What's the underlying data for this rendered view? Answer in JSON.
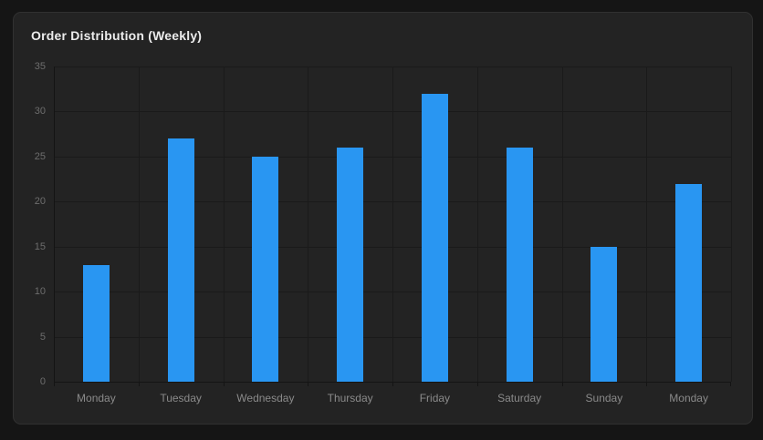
{
  "card": {
    "title": "Order Distribution (Weekly)"
  },
  "chart_data": {
    "type": "bar",
    "title": "Order Distribution (Weekly)",
    "categories": [
      "Monday",
      "Tuesday",
      "Wednesday",
      "Thursday",
      "Friday",
      "Saturday",
      "Sunday",
      "Monday"
    ],
    "values": [
      13,
      27,
      25,
      26,
      32,
      26,
      15,
      22
    ],
    "xlabel": "",
    "ylabel": "",
    "ylim": [
      0,
      35
    ],
    "y_ticks": [
      0,
      5,
      10,
      15,
      20,
      25,
      30,
      35
    ],
    "grid": true,
    "legend": false
  },
  "colors": {
    "page_bg": "#151515",
    "card_bg": "#232323",
    "card_border": "#313131",
    "grid_line": "#1a1a1a",
    "axis_line": "#141414",
    "bar": "#2996f2",
    "title_text": "#ececec",
    "y_tick_text": "#6d6d6d",
    "x_tick_text": "#8a8a8a"
  }
}
